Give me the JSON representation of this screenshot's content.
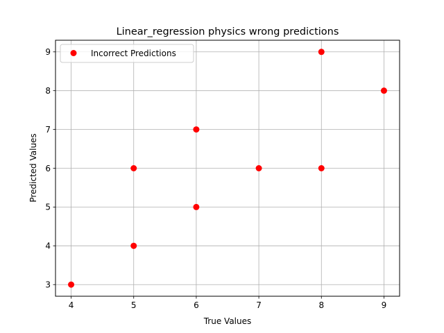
{
  "chart_data": {
    "type": "scatter",
    "title": "Linear_regression physics wrong predictions",
    "xlabel": "True Values",
    "ylabel": "Predicted Values",
    "xlim": [
      3.75,
      9.25
    ],
    "ylim": [
      2.7,
      9.3
    ],
    "xticks": [
      4,
      5,
      6,
      7,
      8,
      9
    ],
    "yticks": [
      3,
      4,
      5,
      6,
      7,
      8,
      9
    ],
    "grid": true,
    "legend_position": "top-left",
    "series": [
      {
        "name": "Incorrect Predictions",
        "color": "#ff0000",
        "points": [
          {
            "x": 4,
            "y": 3
          },
          {
            "x": 5,
            "y": 4
          },
          {
            "x": 5,
            "y": 6
          },
          {
            "x": 6,
            "y": 5
          },
          {
            "x": 6,
            "y": 7
          },
          {
            "x": 7,
            "y": 6
          },
          {
            "x": 8,
            "y": 6
          },
          {
            "x": 8,
            "y": 9
          },
          {
            "x": 9,
            "y": 8
          }
        ]
      }
    ]
  }
}
